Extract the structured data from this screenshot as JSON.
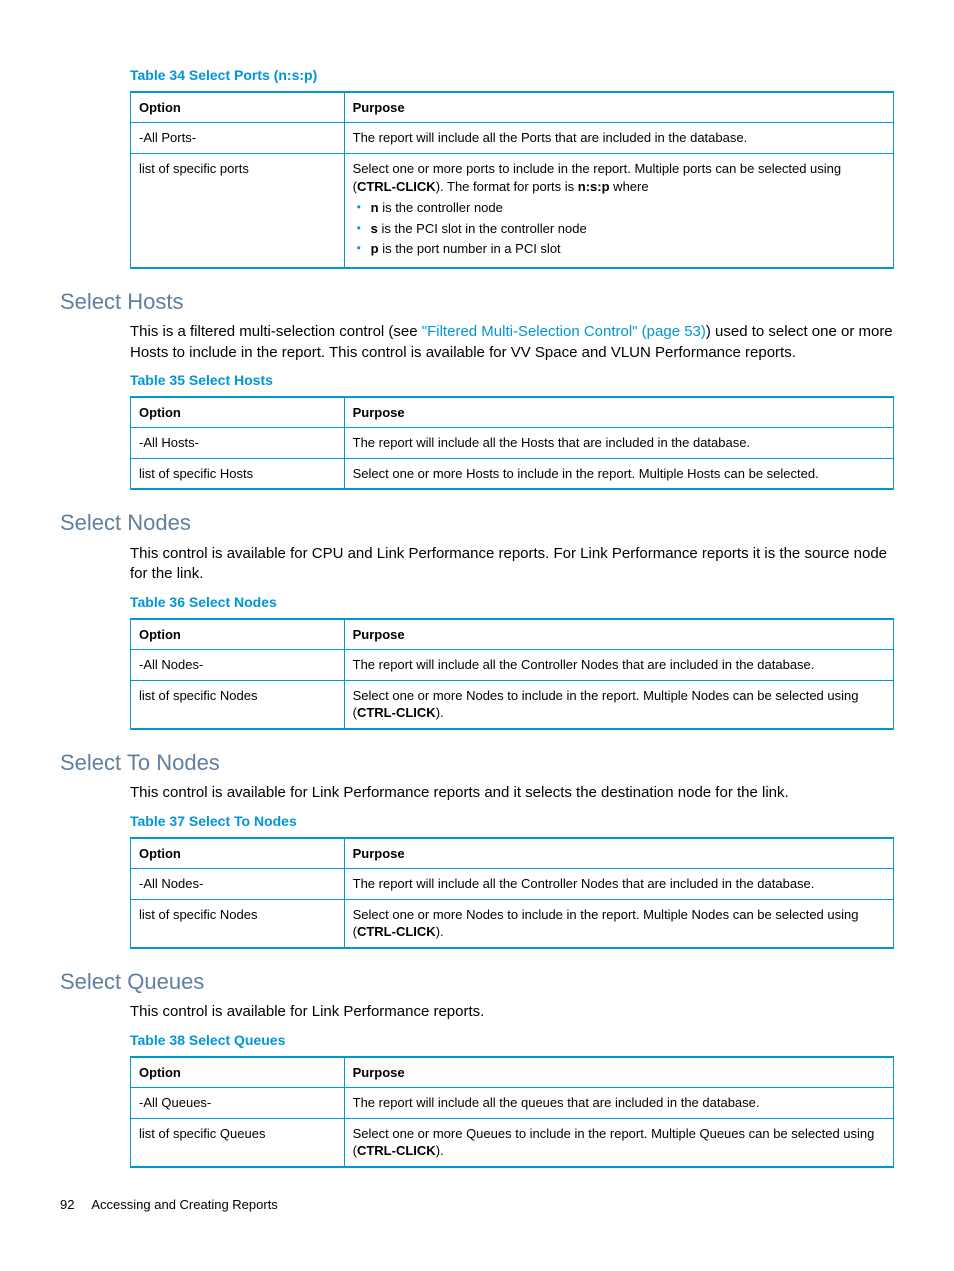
{
  "table34": {
    "caption": "Table 34 Select Ports (n:s:p)",
    "headers": {
      "option": "Option",
      "purpose": "Purpose"
    },
    "row1": {
      "option": "-All Ports-",
      "purpose": "The report will include all the Ports that are included in the database."
    },
    "row2": {
      "option": "list of specific ports",
      "purpose_pre": "Select one or more ports to include in the report. Multiple ports can be selected using (",
      "purpose_b1": "CTRL-CLICK",
      "purpose_mid": "). The format for ports is ",
      "purpose_b2": "n:s:p",
      "purpose_post": " where",
      "li1_b": "n",
      "li1": " is the controller node",
      "li2_b": "s",
      "li2": " is the PCI slot in the controller node",
      "li3_b": "p",
      "li3": " is the port number in a PCI slot"
    }
  },
  "hosts": {
    "heading": "Select Hosts",
    "para_pre": "This is a filtered multi-selection control (see ",
    "para_link": "\"Filtered Multi-Selection Control\" (page 53)",
    "para_post": ") used to select one or more Hosts to include in the report. This control is available for VV Space and VLUN Performance reports.",
    "table": {
      "caption": "Table 35 Select Hosts",
      "headers": {
        "option": "Option",
        "purpose": "Purpose"
      },
      "row1": {
        "option": "-All Hosts-",
        "purpose": "The report will include all the Hosts that are included in the database."
      },
      "row2": {
        "option": "list of specific Hosts",
        "purpose": "Select one or more Hosts to include in the report. Multiple Hosts can be selected."
      }
    }
  },
  "nodes": {
    "heading": "Select Nodes",
    "para": "This control is available for CPU and Link Performance reports. For Link Performance reports it is the source node for the link.",
    "table": {
      "caption": "Table 36 Select Nodes",
      "headers": {
        "option": "Option",
        "purpose": "Purpose"
      },
      "row1": {
        "option": "-All Nodes-",
        "purpose": "The report will include all the Controller Nodes that are included in the database."
      },
      "row2": {
        "option": "list of specific Nodes",
        "purpose_pre": "Select one or more Nodes to include in the report. Multiple Nodes can be selected using (",
        "purpose_b": "CTRL-CLICK",
        "purpose_post": ")."
      }
    }
  },
  "tonodes": {
    "heading": "Select To Nodes",
    "para": "This control is available for Link Performance reports and it selects the destination node for the link.",
    "table": {
      "caption": "Table 37 Select To Nodes",
      "headers": {
        "option": "Option",
        "purpose": "Purpose"
      },
      "row1": {
        "option": "-All Nodes-",
        "purpose": "The report will include all the Controller Nodes that are included in the database."
      },
      "row2": {
        "option": "list of specific Nodes",
        "purpose_pre": "Select one or more Nodes to include in the report. Multiple Nodes can be selected using (",
        "purpose_b": "CTRL-CLICK",
        "purpose_post": ")."
      }
    }
  },
  "queues": {
    "heading": "Select Queues",
    "para": "This control is available for Link Performance reports.",
    "table": {
      "caption": "Table 38 Select Queues",
      "headers": {
        "option": "Option",
        "purpose": "Purpose"
      },
      "row1": {
        "option": "-All Queues-",
        "purpose": "The report will include all the queues that are included in the database."
      },
      "row2": {
        "option": "list of specific Queues",
        "purpose_pre": "Select one or more Queues to include in the report. Multiple Queues can be selected using (",
        "purpose_b": "CTRL-CLICK",
        "purpose_post": ")."
      }
    }
  },
  "footer": {
    "page": "92",
    "title": "Accessing and Creating Reports"
  }
}
